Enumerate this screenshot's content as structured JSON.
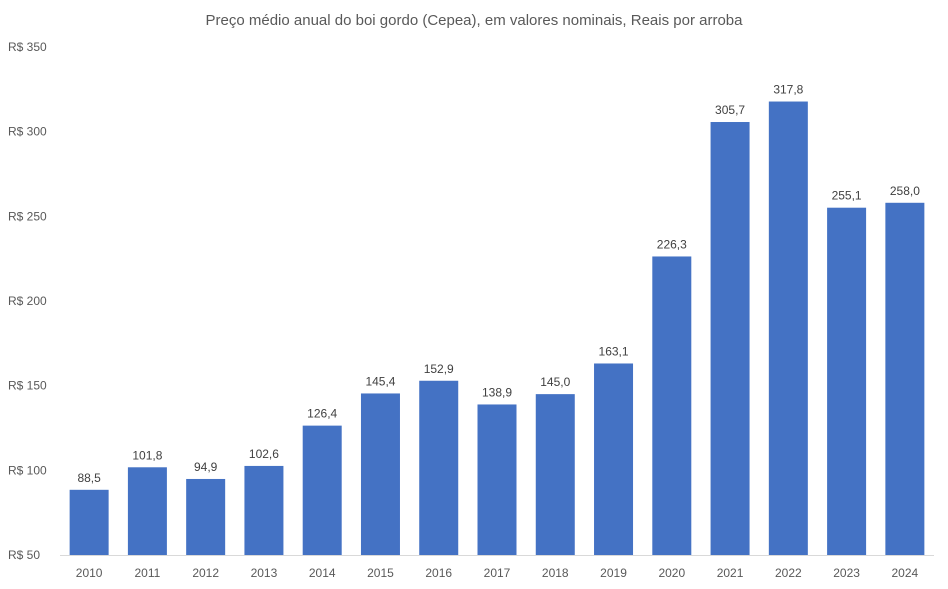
{
  "chart_data": {
    "type": "bar",
    "title": "Preço médio anual do boi gordo (Cepea), em valores nominais, Reais por arroba",
    "xlabel": "",
    "ylabel": "",
    "categories": [
      "2010",
      "2011",
      "2012",
      "2013",
      "2014",
      "2015",
      "2016",
      "2017",
      "2018",
      "2019",
      "2020",
      "2021",
      "2022",
      "2023",
      "2024"
    ],
    "values": [
      88.5,
      101.8,
      94.9,
      102.6,
      126.4,
      145.4,
      152.9,
      138.9,
      145.0,
      163.1,
      226.3,
      305.7,
      317.8,
      255.1,
      258.0
    ],
    "data_labels": [
      "88,5",
      "101,8",
      "94,9",
      "102,6",
      "126,4",
      "145,4",
      "152,9",
      "138,9",
      "145,0",
      "163,1",
      "226,3",
      "305,7",
      "317,8",
      "255,1",
      "258,0"
    ],
    "ylim": [
      50,
      350
    ],
    "yticks": [
      50,
      100,
      150,
      200,
      250,
      300,
      350
    ],
    "ytick_labels": [
      "R$ 50",
      "R$ 100",
      "R$ 150",
      "R$ 200",
      "R$ 250",
      "R$ 300",
      "R$ 350"
    ],
    "grid": false,
    "legend": "none",
    "bar_color": "#4472C4",
    "axis_color": "#D9D9D9"
  }
}
